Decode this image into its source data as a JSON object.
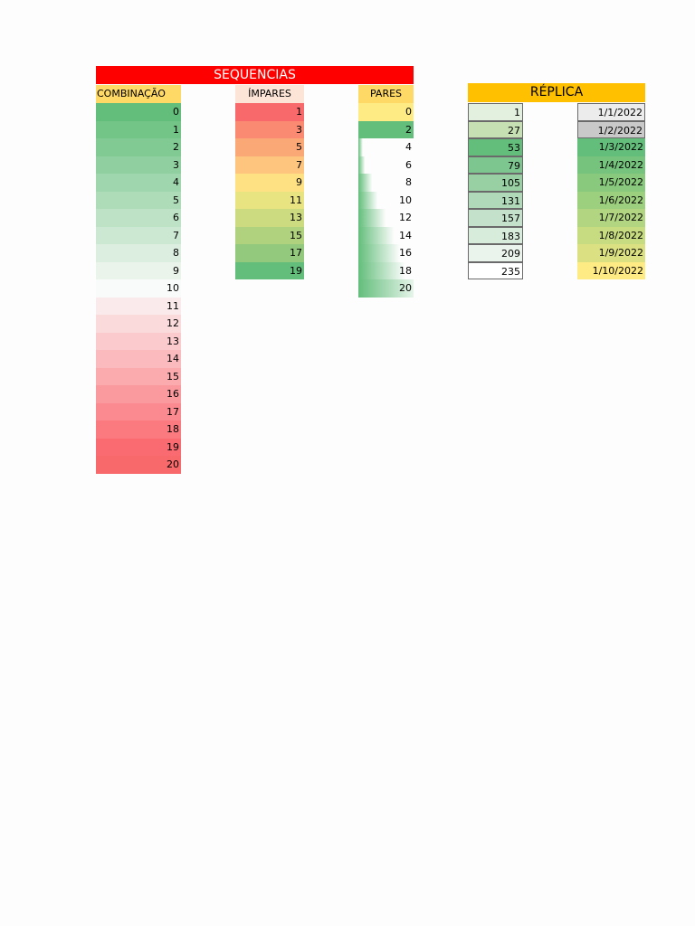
{
  "title": "SEQUENCIAS",
  "combinacao": {
    "header": "COMBINAÇÃO",
    "values": [
      "0",
      "1",
      "2",
      "3",
      "4",
      "5",
      "6",
      "7",
      "8",
      "9",
      "10",
      "11",
      "12",
      "13",
      "14",
      "15",
      "16",
      "17",
      "18",
      "19",
      "20"
    ],
    "colors": [
      "#63be7b",
      "#72c487",
      "#81ca94",
      "#90d0a0",
      "#9fd6ad",
      "#aedcb9",
      "#bde2c6",
      "#cce8d2",
      "#dbeedf",
      "#eaf4eb",
      "#f9fafa",
      "#fbeaeb",
      "#fbdadc",
      "#fbcacd",
      "#fbbabd",
      "#fbaaae",
      "#fa9a9e",
      "#fa8a8f",
      "#fa7a80",
      "#f96a71",
      "#f8696b"
    ]
  },
  "impares": {
    "header": "ÍMPARES",
    "values": [
      "1",
      "3",
      "5",
      "7",
      "9",
      "11",
      "13",
      "15",
      "17",
      "19"
    ],
    "colors": [
      "#f8696b",
      "#fa8a72",
      "#fba877",
      "#fdc57d",
      "#fee182",
      "#e9e482",
      "#cddb80",
      "#b0d27e",
      "#93c97d",
      "#63be7b"
    ]
  },
  "pares": {
    "header": "PARES",
    "values": [
      "0",
      "2",
      "4",
      "6",
      "8",
      "10",
      "12",
      "14",
      "16",
      "18",
      "20"
    ],
    "bar_fraction": [
      0,
      1,
      0.08,
      0.12,
      0.25,
      0.35,
      0.5,
      0.65,
      0.75,
      0.85,
      1
    ],
    "bar_color": "#63be7b",
    "highlight_color": "#ffeb84"
  },
  "replica": {
    "header": "RÉPLICA",
    "header_color": "#ffc000",
    "numbers": [
      "1",
      "27",
      "53",
      "79",
      "105",
      "131",
      "157",
      "183",
      "209",
      "235"
    ],
    "number_colors": [
      "#e3efdf",
      "#c6e0b4",
      "#63be7b",
      "#7ec68f",
      "#98d0a4",
      "#afd9b8",
      "#c4e2cb",
      "#d8ecdc",
      "#eaf4ec",
      "#ffffff"
    ],
    "dates": [
      "1/1/2022",
      "1/2/2022",
      "1/3/2022",
      "1/4/2022",
      "1/5/2022",
      "1/6/2022",
      "1/7/2022",
      "1/8/2022",
      "1/9/2022",
      "1/10/2022"
    ],
    "date_colors": [
      "#ececec",
      "#c9c9c9",
      "#63be7b",
      "#75c37c",
      "#88c97d",
      "#9ccf7e",
      "#b1d580",
      "#c7db80",
      "#dbe182",
      "#ffeb84"
    ]
  },
  "colors": {
    "title_bg": "#ff0000",
    "title_text": "#ffffff",
    "comb_header": "#ffd966",
    "impares_header": "#fce4d6",
    "pares_header": "#ffd966"
  }
}
